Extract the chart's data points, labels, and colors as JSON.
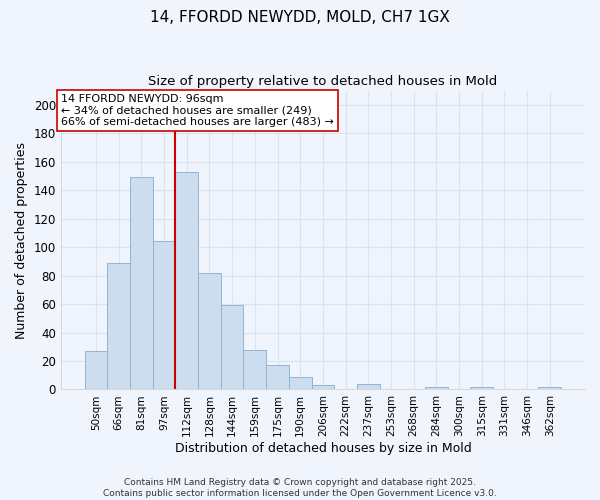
{
  "title": "14, FFORDD NEWYDD, MOLD, CH7 1GX",
  "subtitle": "Size of property relative to detached houses in Mold",
  "xlabel": "Distribution of detached houses by size in Mold",
  "ylabel": "Number of detached properties",
  "bar_color": "#ccddf0",
  "bar_edge_color": "#92b4d4",
  "background_color": "#f0f4fc",
  "grid_color": "#d8e4f0",
  "categories": [
    "50sqm",
    "66sqm",
    "81sqm",
    "97sqm",
    "112sqm",
    "128sqm",
    "144sqm",
    "159sqm",
    "175sqm",
    "190sqm",
    "206sqm",
    "222sqm",
    "237sqm",
    "253sqm",
    "268sqm",
    "284sqm",
    "300sqm",
    "315sqm",
    "331sqm",
    "346sqm",
    "362sqm"
  ],
  "values": [
    27,
    89,
    149,
    104,
    153,
    82,
    59,
    28,
    17,
    9,
    3,
    0,
    4,
    0,
    0,
    2,
    0,
    2,
    0,
    0,
    2
  ],
  "ylim": [
    0,
    210
  ],
  "yticks": [
    0,
    20,
    40,
    60,
    80,
    100,
    120,
    140,
    160,
    180,
    200
  ],
  "property_line_x": 3.5,
  "property_line_color": "#cc0000",
  "annotation_text": "14 FFORDD NEWYDD: 96sqm\n← 34% of detached houses are smaller (249)\n66% of semi-detached houses are larger (483) →",
  "annotation_box_color": "#ffffff",
  "annotation_box_edge_color": "#cc0000",
  "footnote": "Contains HM Land Registry data © Crown copyright and database right 2025.\nContains public sector information licensed under the Open Government Licence v3.0.",
  "title_fontsize": 11,
  "subtitle_fontsize": 9.5,
  "xlabel_fontsize": 9,
  "ylabel_fontsize": 9,
  "annotation_fontsize": 8,
  "footnote_fontsize": 6.5
}
